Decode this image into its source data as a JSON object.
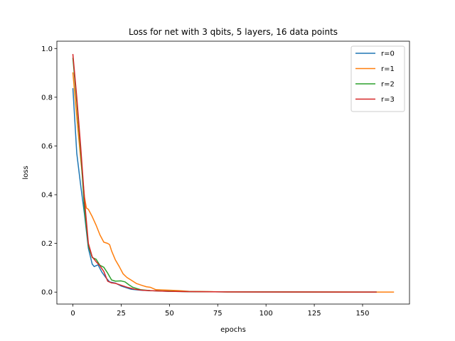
{
  "chart_data": {
    "type": "line",
    "title": "Loss for net with 3 qbits, 5 layers, 16 data points",
    "xlabel": "epochs",
    "ylabel": "loss",
    "xlim": [
      -8.3,
      174.3
    ],
    "ylim": [
      -0.049,
      1.03
    ],
    "xticks": [
      0,
      25,
      50,
      75,
      100,
      125,
      150
    ],
    "yticks": [
      0.0,
      0.2,
      0.4,
      0.6,
      0.8,
      1.0
    ],
    "xtick_labels": [
      "0",
      "25",
      "50",
      "75",
      "100",
      "125",
      "150"
    ],
    "ytick_labels": [
      "0.0",
      "0.2",
      "0.4",
      "0.6",
      "0.8",
      "1.0"
    ],
    "grid": false,
    "legend_position": "top-right",
    "series": [
      {
        "name": "r=0",
        "color": "#1f77b4",
        "x": [
          0,
          2,
          4,
          6,
          8,
          10,
          11,
          13,
          15,
          17,
          19,
          22,
          25,
          30,
          35,
          40,
          50,
          60,
          80,
          100,
          120,
          140,
          157
        ],
        "y": [
          0.835,
          0.57,
          0.44,
          0.32,
          0.18,
          0.115,
          0.105,
          0.112,
          0.082,
          0.06,
          0.042,
          0.037,
          0.025,
          0.012,
          0.008,
          0.006,
          0.003,
          0.002,
          0.001,
          0.0005,
          0.0003,
          0.0002,
          0.0002
        ]
      },
      {
        "name": "r=1",
        "color": "#ff7f0e",
        "x": [
          0,
          2,
          4,
          6,
          7,
          8,
          10,
          12,
          14,
          16,
          18,
          19,
          20,
          22,
          24,
          26,
          28,
          30,
          33,
          36,
          38,
          40,
          43,
          50,
          55,
          60,
          80,
          100,
          120,
          140,
          160,
          166
        ],
        "y": [
          0.9,
          0.72,
          0.55,
          0.39,
          0.345,
          0.34,
          0.31,
          0.275,
          0.235,
          0.205,
          0.2,
          0.195,
          0.17,
          0.132,
          0.105,
          0.075,
          0.06,
          0.05,
          0.035,
          0.027,
          0.022,
          0.02,
          0.01,
          0.008,
          0.006,
          0.003,
          0.001,
          0.0008,
          0.0005,
          0.0004,
          0.0003,
          0.0003
        ]
      },
      {
        "name": "r=2",
        "color": "#2ca02c",
        "x": [
          0,
          2,
          4,
          6,
          8,
          10,
          12,
          14,
          16,
          18,
          20,
          22,
          25,
          27,
          29,
          31,
          33,
          35,
          40,
          50,
          60,
          80,
          100,
          120,
          140,
          157
        ],
        "y": [
          0.96,
          0.78,
          0.58,
          0.34,
          0.19,
          0.142,
          0.135,
          0.11,
          0.102,
          0.078,
          0.05,
          0.045,
          0.046,
          0.042,
          0.03,
          0.02,
          0.015,
          0.01,
          0.006,
          0.004,
          0.002,
          0.001,
          0.0008,
          0.0005,
          0.0003,
          0.0003
        ]
      },
      {
        "name": "r=3",
        "color": "#d62728",
        "x": [
          0,
          2,
          4,
          6,
          8,
          10,
          12,
          14,
          16,
          18,
          20,
          22,
          25,
          28,
          32,
          36,
          40,
          50,
          60,
          80,
          100,
          120,
          140,
          157
        ],
        "y": [
          0.975,
          0.8,
          0.6,
          0.38,
          0.2,
          0.145,
          0.125,
          0.108,
          0.085,
          0.045,
          0.038,
          0.036,
          0.028,
          0.02,
          0.012,
          0.008,
          0.006,
          0.003,
          0.002,
          0.001,
          0.0006,
          0.0004,
          0.0003,
          0.0003
        ]
      }
    ]
  }
}
